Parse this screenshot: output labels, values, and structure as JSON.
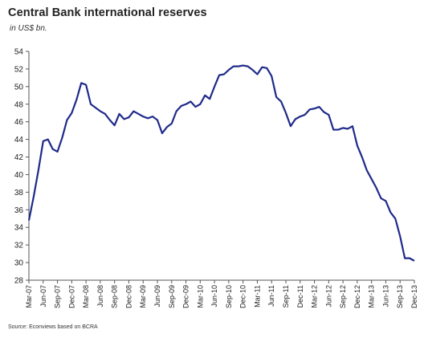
{
  "chart_data": {
    "type": "line",
    "title": "Central Bank international  reserves",
    "subtitle": "in US$ bn.",
    "source": "Source: Econviews based on BCRA",
    "ylim": [
      28,
      54
    ],
    "yticks": [
      28,
      30,
      32,
      34,
      36,
      38,
      40,
      42,
      44,
      46,
      48,
      50,
      52,
      54
    ],
    "grid": false,
    "legend": "none",
    "line_color": "#1f2a8a",
    "x_tick_labels": [
      "Mar-07",
      "Jun-07",
      "Sep-07",
      "Dec-07",
      "Mar-08",
      "Jun-08",
      "Sep-08",
      "Dec-08",
      "Mar-09",
      "Jun-09",
      "Sep-09",
      "Dec-09",
      "Mar-10",
      "Jun-10",
      "Sep-10",
      "Dec-10",
      "Mar-11",
      "Jun-11",
      "Sep-11",
      "Dec-11",
      "Mar-12",
      "Jun-12",
      "Sep-12",
      "Dec-12",
      "Mar-13",
      "Jun-13",
      "Sep-13",
      "Dec-13"
    ],
    "series": [
      {
        "x": [
          "2007-03",
          "2007-04",
          "2007-05",
          "2007-06",
          "2007-07",
          "2007-08",
          "2007-09",
          "2007-10",
          "2007-11",
          "2007-12",
          "2008-01",
          "2008-02",
          "2008-03",
          "2008-04",
          "2008-05",
          "2008-06",
          "2008-07",
          "2008-08",
          "2008-09",
          "2008-10",
          "2008-11",
          "2008-12",
          "2009-01",
          "2009-02",
          "2009-03",
          "2009-04",
          "2009-05",
          "2009-06",
          "2009-07",
          "2009-08",
          "2009-09",
          "2009-10",
          "2009-11",
          "2009-12",
          "2010-01",
          "2010-02",
          "2010-03",
          "2010-04",
          "2010-05",
          "2010-06",
          "2010-07",
          "2010-08",
          "2010-09",
          "2010-10",
          "2010-11",
          "2010-12",
          "2011-01",
          "2011-02",
          "2011-03",
          "2011-04",
          "2011-05",
          "2011-06",
          "2011-07",
          "2011-08",
          "2011-09",
          "2011-10",
          "2011-11",
          "2011-12",
          "2012-01",
          "2012-02",
          "2012-03",
          "2012-04",
          "2012-05",
          "2012-06",
          "2012-07",
          "2012-08",
          "2012-09",
          "2012-10",
          "2012-11",
          "2012-12",
          "2013-01",
          "2013-02",
          "2013-03",
          "2013-04",
          "2013-05",
          "2013-06",
          "2013-07",
          "2013-08",
          "2013-09",
          "2013-10",
          "2013-11",
          "2013-12"
        ],
        "values": [
          34.8,
          37.5,
          40.5,
          43.8,
          44.0,
          42.9,
          42.6,
          44.2,
          46.2,
          47.0,
          48.5,
          50.4,
          50.2,
          48.0,
          47.6,
          47.2,
          46.9,
          46.2,
          45.6,
          46.9,
          46.3,
          46.5,
          47.2,
          46.9,
          46.6,
          46.4,
          46.6,
          46.2,
          44.7,
          45.4,
          45.8,
          47.2,
          47.8,
          48.0,
          48.3,
          47.7,
          48.0,
          49.0,
          48.6,
          50.0,
          51.3,
          51.4,
          51.9,
          52.3,
          52.3,
          52.4,
          52.3,
          51.9,
          51.4,
          52.2,
          52.1,
          51.2,
          48.8,
          48.3,
          47.0,
          45.5,
          46.3,
          46.6,
          46.8,
          47.4,
          47.5,
          47.7,
          47.1,
          46.8,
          45.1,
          45.1,
          45.3,
          45.2,
          45.5,
          43.3,
          42.0,
          40.5,
          39.5,
          38.5,
          37.3,
          37.0,
          35.7,
          35.0,
          33.0,
          30.5,
          30.5,
          30.2
        ]
      }
    ]
  }
}
